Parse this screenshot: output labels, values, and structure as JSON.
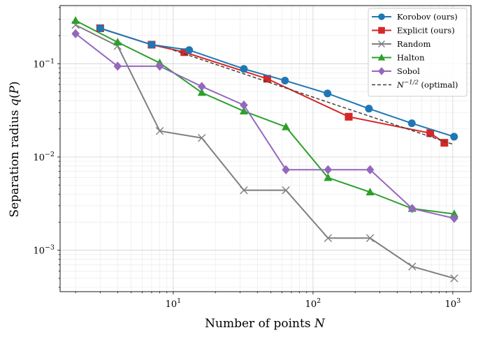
{
  "chart_data": {
    "type": "line",
    "scale": {
      "x": "log",
      "y": "log"
    },
    "xlabel": "Number of points N",
    "ylabel": "Separation radius q(P)",
    "xlim": [
      1.55,
      1350
    ],
    "ylim": [
      0.00036,
      0.42
    ],
    "grid": "major and minor",
    "legend_position": "top-right",
    "x_ticks": [
      {
        "value": 10,
        "base": "10",
        "exp": "1"
      },
      {
        "value": 100,
        "base": "10",
        "exp": "2"
      },
      {
        "value": 1000,
        "base": "10",
        "exp": "3"
      }
    ],
    "y_ticks": [
      {
        "value": 0.1,
        "base": "10",
        "exp": "−1"
      },
      {
        "value": 0.01,
        "base": "10",
        "exp": "−2"
      },
      {
        "value": 0.001,
        "base": "10",
        "exp": "−3"
      }
    ],
    "series": [
      {
        "name": "Korobov (ours)",
        "color": "#1f77b4",
        "marker": "circle",
        "x": [
          3,
          7,
          13,
          32,
          63,
          127,
          251,
          509,
          1021
        ],
        "y": [
          0.24,
          0.16,
          0.14,
          0.088,
          0.066,
          0.048,
          0.033,
          0.023,
          0.0165
        ]
      },
      {
        "name": "Explicit (ours)",
        "color": "#d62728",
        "marker": "square",
        "x": [
          3,
          7,
          12,
          47,
          180,
          690,
          870
        ],
        "y": [
          0.24,
          0.16,
          0.133,
          0.069,
          0.027,
          0.018,
          0.0142
        ]
      },
      {
        "name": "Random",
        "color": "#7f7f7f",
        "marker": "x",
        "x": [
          2,
          4,
          8,
          16,
          32,
          64,
          128,
          256,
          512,
          1024
        ],
        "y": [
          0.26,
          0.155,
          0.019,
          0.016,
          0.0044,
          0.0044,
          0.00135,
          0.00135,
          0.00067,
          0.0005
        ]
      },
      {
        "name": "Halton",
        "color": "#2ca02c",
        "marker": "triangle",
        "x": [
          2,
          4,
          8,
          16,
          32,
          64,
          128,
          256,
          512,
          1024
        ],
        "y": [
          0.29,
          0.17,
          0.102,
          0.049,
          0.031,
          0.021,
          0.006,
          0.0042,
          0.0028,
          0.00245
        ]
      },
      {
        "name": "Sobol",
        "color": "#9467bd",
        "marker": "diamond",
        "x": [
          2,
          4,
          8,
          16,
          32,
          64,
          128,
          256,
          512,
          1024
        ],
        "y": [
          0.21,
          0.094,
          0.094,
          0.057,
          0.036,
          0.0073,
          0.0073,
          0.0073,
          0.0028,
          0.0022
        ]
      },
      {
        "name": "N^−1/2 (optimal)",
        "color": "#404040",
        "marker": "none",
        "dashed": true,
        "x": [
          10,
          1000
        ],
        "y": [
          0.14,
          0.0137
        ]
      }
    ],
    "legend": [
      {
        "label": "Korobov (ours)"
      },
      {
        "label": "Explicit (ours)"
      },
      {
        "label": "Random"
      },
      {
        "label": "Halton"
      },
      {
        "label": "Sobol"
      },
      {
        "label_prefix": "N",
        "label_sup": "−1/2",
        "label_suffix": " (optimal)"
      }
    ]
  }
}
